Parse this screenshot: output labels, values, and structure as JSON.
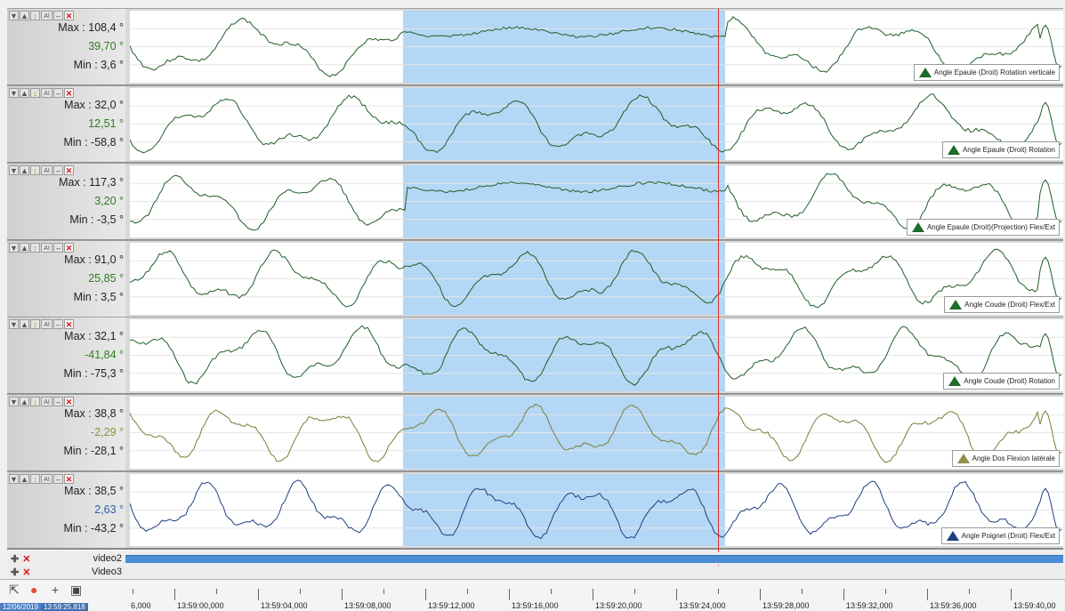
{
  "toolbar_icons": [
    "triangle-down-icon",
    "triangle-up-icon",
    "fit-vertical-icon",
    "auto-scale-icon",
    "minimize-icon",
    "close-icon"
  ],
  "toolbar_glyphs": {
    "down": "▼",
    "up": "▲",
    "fit": "↕",
    "auto": "AI",
    "min": "–",
    "close": "✕"
  },
  "tracks": [
    {
      "max": "Max : 108,4 °",
      "current": "39,70 °",
      "min": "Min : 3,6 °",
      "current_color": "#2e7d20",
      "legend": "Angle Epaule (Droit) Rotation verticale",
      "line_color": "#1f5e25",
      "icon_color": "#1f6b2a"
    },
    {
      "max": "Max : 32,0 °",
      "current": "12,51 °",
      "min": "Min : -58,8 °",
      "current_color": "#2e7d20",
      "legend": "Angle Epaule (Droit) Rotation",
      "line_color": "#1f5e25",
      "icon_color": "#1f6b2a"
    },
    {
      "max": "Max : 117,3 °",
      "current": "3,20 °",
      "min": "Min : -3,5 °",
      "current_color": "#2e7d20",
      "legend": "Angle Epaule (Droit)(Projection) Flex/Ext",
      "line_color": "#1f5e25",
      "icon_color": "#1f6b2a"
    },
    {
      "max": "Max : 91,0 °",
      "current": "25,85 °",
      "min": "Min : 3,5 °",
      "current_color": "#2e7d20",
      "legend": "Angle Coude (Droit) Flex/Ext",
      "line_color": "#1f5e25",
      "icon_color": "#1f6b2a"
    },
    {
      "max": "Max : 32,1 °",
      "current": "-41,84 °",
      "min": "Min : -75,3 °",
      "current_color": "#2e7d20",
      "legend": "Angle Coude (Droit) Rotation",
      "line_color": "#1f5e25",
      "icon_color": "#1f6b2a"
    },
    {
      "max": "Max : 38,8 °",
      "current": "-2,29 °",
      "min": "Min : -28,1 °",
      "current_color": "#8f8f3a",
      "legend": "Angle Dos Flexion latérale",
      "line_color": "#7d7d3a",
      "icon_color": "#8f8f4a"
    },
    {
      "max": "Max : 38,5 °",
      "current": "2,63 °",
      "min": "Min : -43,2 °",
      "current_color": "#2a5ea8",
      "legend": "Angle Poignet (Droit) Flex/Ext",
      "line_color": "#1f3f80",
      "icon_color": "#1f3f80"
    }
  ],
  "video_rows": [
    {
      "label": "video2"
    },
    {
      "label": "Video3"
    }
  ],
  "ruler": {
    "date": "12/06/2019",
    "time": "13:59:25.818",
    "first_label": "6,000",
    "labels": [
      "13:59:00,000",
      "13:59:04,000",
      "13:59:08,000",
      "13:59:12,000",
      "13:59:16,000",
      "13:59:20,000",
      "13:59:24,000",
      "13:59:28,000",
      "13:59:32,000",
      "13:59:36,000",
      "13:59:40,00"
    ]
  },
  "colors": {
    "selection": "#b3d7f5",
    "cursor": "#e03030"
  }
}
